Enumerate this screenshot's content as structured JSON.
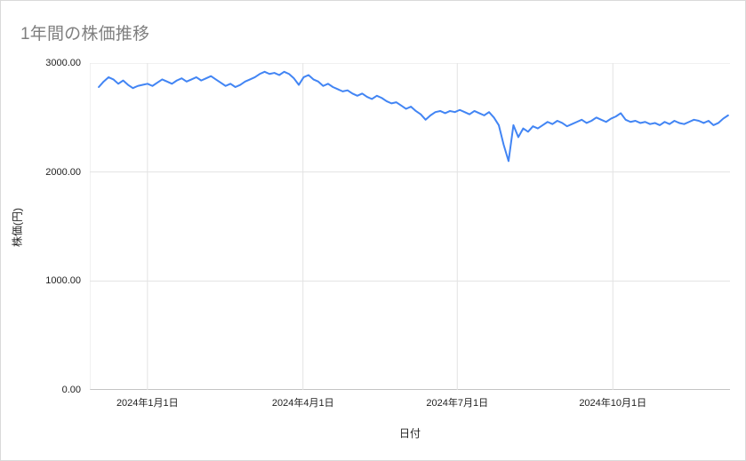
{
  "page": {
    "background": "#ffffff",
    "border_color": "#d9d9d9"
  },
  "chart_data": {
    "type": "line",
    "title": "1年間の株価推移",
    "title_color": "#7f7f7f",
    "xlabel": "日付",
    "ylabel": "株価(円)",
    "ylim": [
      0,
      3000
    ],
    "grid": true,
    "legend": "none",
    "line_color": "#4285f4",
    "gridline_color": "#e3e3e3",
    "axis_line_color": "#8a8a8a",
    "x_span": [
      0.014,
      0.997
    ],
    "yticks": [
      {
        "value": 3000,
        "label": "3000.00"
      },
      {
        "value": 2000,
        "label": "2000.00"
      },
      {
        "value": 1000,
        "label": "1000.00"
      },
      {
        "value": 0,
        "label": "0.00"
      }
    ],
    "xticks": [
      {
        "pos": 0.09,
        "label": "2024年1月1日"
      },
      {
        "pos": 0.333,
        "label": "2024年4月1日"
      },
      {
        "pos": 0.574,
        "label": "2024年7月1日"
      },
      {
        "pos": 0.817,
        "label": "2024年10月1日"
      }
    ],
    "series": [
      {
        "name": "株価(円)",
        "values": [
          2780,
          2830,
          2870,
          2850,
          2810,
          2840,
          2800,
          2770,
          2790,
          2800,
          2810,
          2790,
          2820,
          2850,
          2830,
          2810,
          2840,
          2860,
          2830,
          2850,
          2870,
          2840,
          2860,
          2880,
          2850,
          2820,
          2790,
          2810,
          2780,
          2800,
          2830,
          2850,
          2870,
          2900,
          2920,
          2900,
          2910,
          2890,
          2920,
          2900,
          2860,
          2800,
          2870,
          2890,
          2850,
          2830,
          2790,
          2810,
          2780,
          2760,
          2740,
          2750,
          2720,
          2700,
          2720,
          2690,
          2670,
          2700,
          2680,
          2650,
          2630,
          2640,
          2610,
          2580,
          2600,
          2560,
          2530,
          2480,
          2520,
          2550,
          2560,
          2540,
          2560,
          2550,
          2570,
          2550,
          2530,
          2560,
          2540,
          2520,
          2550,
          2500,
          2430,
          2250,
          2100,
          2430,
          2320,
          2400,
          2370,
          2420,
          2400,
          2430,
          2460,
          2440,
          2470,
          2450,
          2420,
          2440,
          2460,
          2480,
          2450,
          2470,
          2500,
          2480,
          2460,
          2490,
          2510,
          2540,
          2480,
          2460,
          2470,
          2450,
          2460,
          2440,
          2450,
          2430,
          2460,
          2440,
          2470,
          2450,
          2440,
          2460,
          2480,
          2470,
          2450,
          2470,
          2430,
          2450,
          2490,
          2520
        ]
      }
    ]
  }
}
